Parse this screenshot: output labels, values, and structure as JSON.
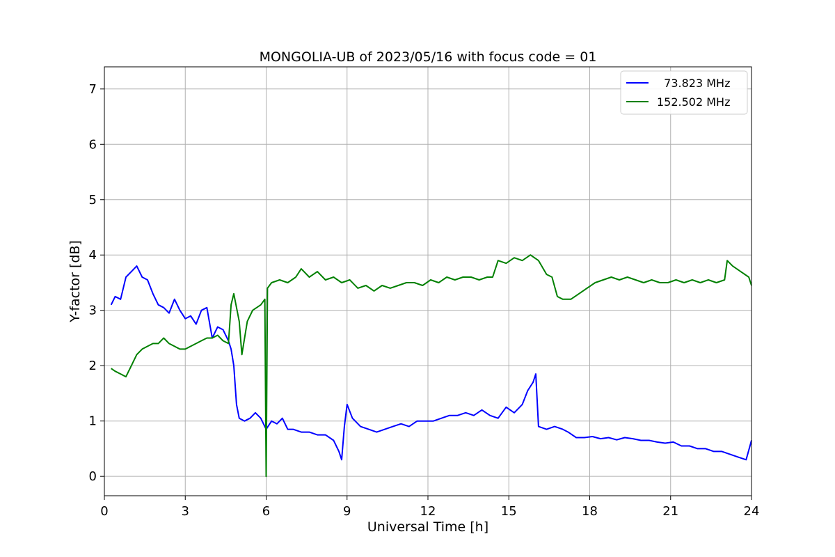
{
  "chart_data": {
    "type": "line",
    "title": "MONGOLIA-UB of 2023/05/16 with focus code = 01",
    "xlabel": "Universal Time [h]",
    "ylabel": "Y-factor [dB]",
    "xlim": [
      0,
      24
    ],
    "ylim": [
      -0.35,
      7.4
    ],
    "xticks": [
      0,
      3,
      6,
      9,
      12,
      15,
      18,
      21,
      24
    ],
    "yticks": [
      0,
      1,
      2,
      3,
      4,
      5,
      6,
      7
    ],
    "grid": true,
    "legend_position": "top-right",
    "series": [
      {
        "name": "  73.823 MHz",
        "color": "#0000ff",
        "x": [
          0.25,
          0.4,
          0.6,
          0.8,
          1.0,
          1.2,
          1.4,
          1.6,
          1.8,
          2.0,
          2.2,
          2.4,
          2.6,
          2.8,
          3.0,
          3.2,
          3.4,
          3.6,
          3.8,
          4.0,
          4.2,
          4.4,
          4.6,
          4.7,
          4.8,
          4.9,
          5.0,
          5.2,
          5.4,
          5.6,
          5.8,
          6.0,
          6.2,
          6.4,
          6.6,
          6.8,
          7.0,
          7.3,
          7.6,
          7.9,
          8.2,
          8.5,
          8.7,
          8.8,
          8.9,
          9.0,
          9.2,
          9.5,
          9.8,
          10.1,
          10.4,
          10.7,
          11.0,
          11.3,
          11.6,
          11.9,
          12.2,
          12.5,
          12.8,
          13.1,
          13.4,
          13.7,
          14.0,
          14.3,
          14.6,
          14.9,
          15.2,
          15.5,
          15.7,
          15.9,
          16.0,
          16.1,
          16.4,
          16.7,
          17.0,
          17.2,
          17.5,
          17.8,
          18.1,
          18.4,
          18.7,
          19.0,
          19.3,
          19.6,
          19.9,
          20.2,
          20.5,
          20.8,
          21.1,
          21.4,
          21.7,
          22.0,
          22.3,
          22.6,
          22.9,
          23.2,
          23.5,
          23.8,
          24.0
        ],
        "y": [
          3.1,
          3.25,
          3.2,
          3.6,
          3.7,
          3.8,
          3.6,
          3.55,
          3.3,
          3.1,
          3.05,
          2.95,
          3.2,
          3.0,
          2.85,
          2.9,
          2.75,
          3.0,
          3.05,
          2.5,
          2.7,
          2.65,
          2.45,
          2.3,
          2.0,
          1.3,
          1.05,
          1.0,
          1.05,
          1.15,
          1.05,
          0.85,
          1.0,
          0.95,
          1.05,
          0.85,
          0.85,
          0.8,
          0.8,
          0.75,
          0.75,
          0.65,
          0.45,
          0.3,
          0.9,
          1.3,
          1.05,
          0.9,
          0.85,
          0.8,
          0.85,
          0.9,
          0.95,
          0.9,
          1.0,
          1.0,
          1.0,
          1.05,
          1.1,
          1.1,
          1.15,
          1.1,
          1.2,
          1.1,
          1.05,
          1.25,
          1.15,
          1.3,
          1.55,
          1.7,
          1.85,
          0.9,
          0.85,
          0.9,
          0.85,
          0.8,
          0.7,
          0.7,
          0.72,
          0.68,
          0.7,
          0.66,
          0.7,
          0.68,
          0.65,
          0.65,
          0.62,
          0.6,
          0.62,
          0.55,
          0.55,
          0.5,
          0.5,
          0.45,
          0.45,
          0.4,
          0.35,
          0.3,
          0.65
        ]
      },
      {
        "name": "152.502 MHz",
        "color": "#008000",
        "x": [
          0.25,
          0.4,
          0.6,
          0.8,
          1.0,
          1.2,
          1.4,
          1.6,
          1.8,
          2.0,
          2.1,
          2.2,
          2.4,
          2.6,
          2.8,
          3.0,
          3.2,
          3.4,
          3.6,
          3.8,
          4.0,
          4.2,
          4.4,
          4.6,
          4.7,
          4.8,
          5.0,
          5.1,
          5.3,
          5.5,
          5.8,
          5.95,
          6.0,
          6.05,
          6.2,
          6.5,
          6.8,
          7.1,
          7.3,
          7.6,
          7.9,
          8.2,
          8.5,
          8.8,
          9.1,
          9.4,
          9.7,
          10.0,
          10.3,
          10.6,
          10.9,
          11.2,
          11.5,
          11.8,
          12.1,
          12.4,
          12.7,
          13.0,
          13.3,
          13.6,
          13.9,
          14.2,
          14.4,
          14.6,
          14.9,
          15.2,
          15.5,
          15.8,
          16.1,
          16.4,
          16.6,
          16.8,
          17.0,
          17.3,
          17.6,
          17.9,
          18.2,
          18.5,
          18.8,
          19.1,
          19.4,
          19.7,
          20.0,
          20.3,
          20.6,
          20.9,
          21.2,
          21.5,
          21.8,
          22.1,
          22.4,
          22.7,
          23.0,
          23.1,
          23.3,
          23.6,
          23.9,
          24.0
        ],
        "y": [
          1.95,
          1.9,
          1.85,
          1.8,
          2.0,
          2.2,
          2.3,
          2.35,
          2.4,
          2.4,
          2.45,
          2.5,
          2.4,
          2.35,
          2.3,
          2.3,
          2.35,
          2.4,
          2.45,
          2.5,
          2.5,
          2.55,
          2.45,
          2.4,
          3.1,
          3.3,
          2.8,
          2.2,
          2.8,
          3.0,
          3.1,
          3.2,
          0.0,
          3.4,
          3.5,
          3.55,
          3.5,
          3.6,
          3.75,
          3.6,
          3.7,
          3.55,
          3.6,
          3.5,
          3.55,
          3.4,
          3.45,
          3.35,
          3.45,
          3.4,
          3.45,
          3.5,
          3.5,
          3.45,
          3.55,
          3.5,
          3.6,
          3.55,
          3.6,
          3.6,
          3.55,
          3.6,
          3.6,
          3.9,
          3.85,
          3.95,
          3.9,
          4.0,
          3.9,
          3.65,
          3.6,
          3.25,
          3.2,
          3.2,
          3.3,
          3.4,
          3.5,
          3.55,
          3.6,
          3.55,
          3.6,
          3.55,
          3.5,
          3.55,
          3.5,
          3.5,
          3.55,
          3.5,
          3.55,
          3.5,
          3.55,
          3.5,
          3.55,
          3.9,
          3.8,
          3.7,
          3.6,
          3.45
        ]
      }
    ]
  }
}
